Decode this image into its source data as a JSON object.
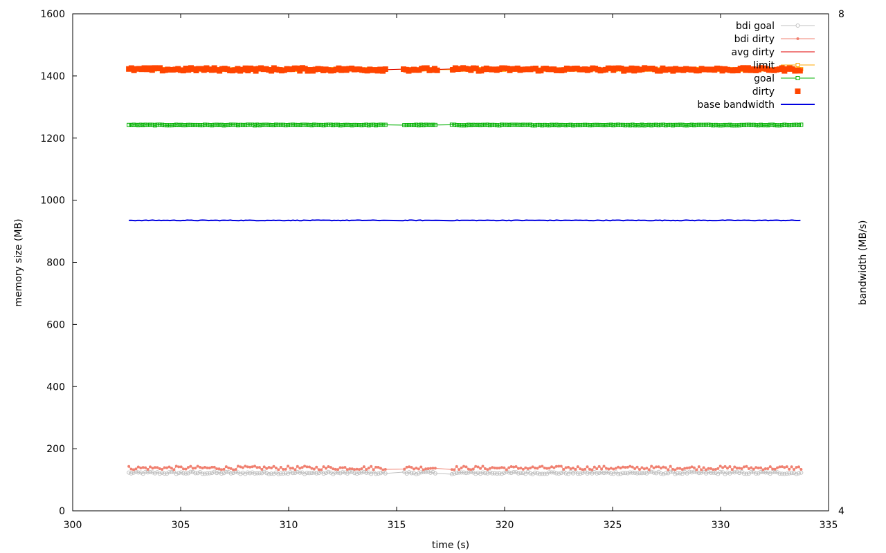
{
  "chart_data": {
    "type": "line",
    "title": "",
    "xlabel": "time (s)",
    "ylabel": "memory size (MB)",
    "y2label": "bandwidth (MB/s)",
    "xlim": [
      300,
      335
    ],
    "ylim": [
      0,
      1600
    ],
    "y2lim": [
      4,
      8
    ],
    "xticks": [
      "300",
      "305",
      "310",
      "315",
      "320",
      "325",
      "330",
      "335"
    ],
    "yticks": [
      "0",
      "200",
      "400",
      "600",
      "800",
      "1000",
      "1200",
      "1400",
      "1600"
    ],
    "y2ticks": [
      "4",
      "8"
    ],
    "grid": false,
    "legend_position": "top-right",
    "x_range": [
      302.6,
      333.8
    ],
    "gaps": [
      [
        314.5,
        315.3
      ],
      [
        316.9,
        317.5
      ]
    ],
    "series": [
      {
        "name": "bdi goal",
        "color": "#c0c0c0",
        "style": "line-open-circle",
        "mean": 122,
        "spread": 4
      },
      {
        "name": "bdi dirty",
        "color": "#f08070",
        "style": "line-dot",
        "mean": 138,
        "spread": 6
      },
      {
        "name": "avg dirty",
        "color": "#e00000",
        "style": "line",
        "mean": 1421,
        "spread": 2
      },
      {
        "name": "limit",
        "color": "#ffa500",
        "style": "line-open-square",
        "mean": 1421,
        "spread": 1
      },
      {
        "name": "goal",
        "color": "#00b000",
        "style": "line-open-square",
        "mean": 1242,
        "spread": 1
      },
      {
        "name": "dirty",
        "color": "#ff4500",
        "style": "square",
        "mean": 1421,
        "spread": 5
      },
      {
        "name": "base bandwidth",
        "color": "#0000e0",
        "style": "line",
        "mean": 935,
        "spread": 1
      }
    ]
  }
}
